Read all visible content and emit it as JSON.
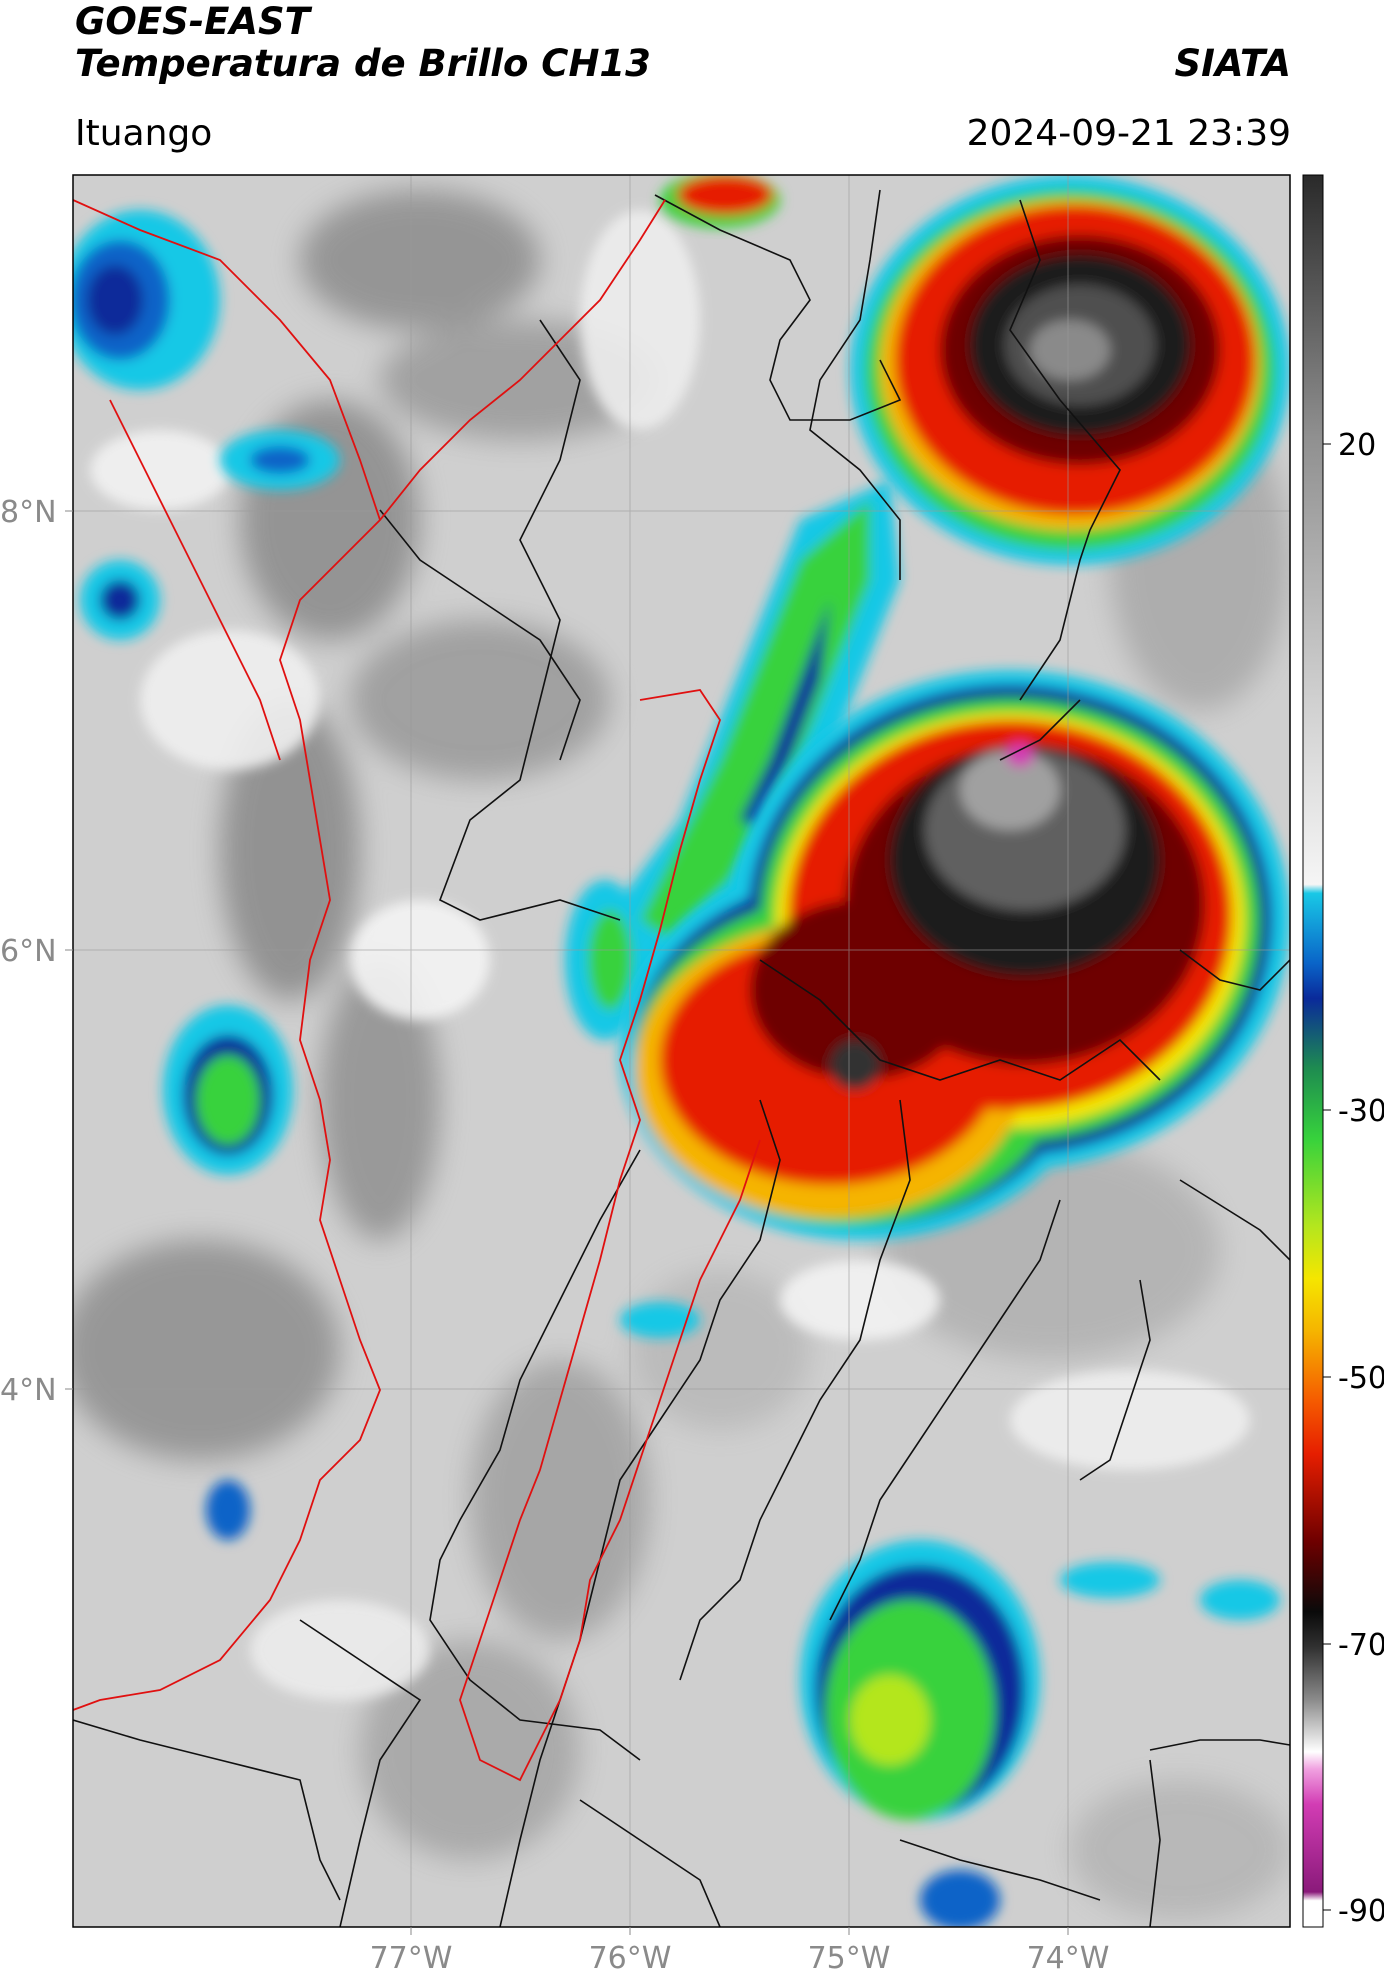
{
  "header": {
    "title_line1": "GOES-EAST",
    "title_line2": "Temperatura de Brillo CH13",
    "brand": "SIATA",
    "location": "Ituango",
    "datetime": "2024-09-21 23:39"
  },
  "map": {
    "lon_labels": [
      "77°W",
      "76°W",
      "75°W",
      "74°W"
    ],
    "lat_labels": [
      "8°N",
      "6°N",
      "4°N"
    ]
  },
  "colorbar": {
    "tick_labels": [
      "20",
      "-30",
      "-50",
      "-70",
      "-90"
    ],
    "colors": {
      "warm_gray": "#8c8c8c",
      "light_gray": "#e0e0e0",
      "cyan": "#19c8e6",
      "blue": "#0a2a9a",
      "green": "#37d23c",
      "yellow": "#f5e600",
      "orange": "#f58c00",
      "red": "#e61e00",
      "dark_red": "#6e0000",
      "black": "#0a0a0a",
      "magenta": "#d23cb4"
    }
  }
}
